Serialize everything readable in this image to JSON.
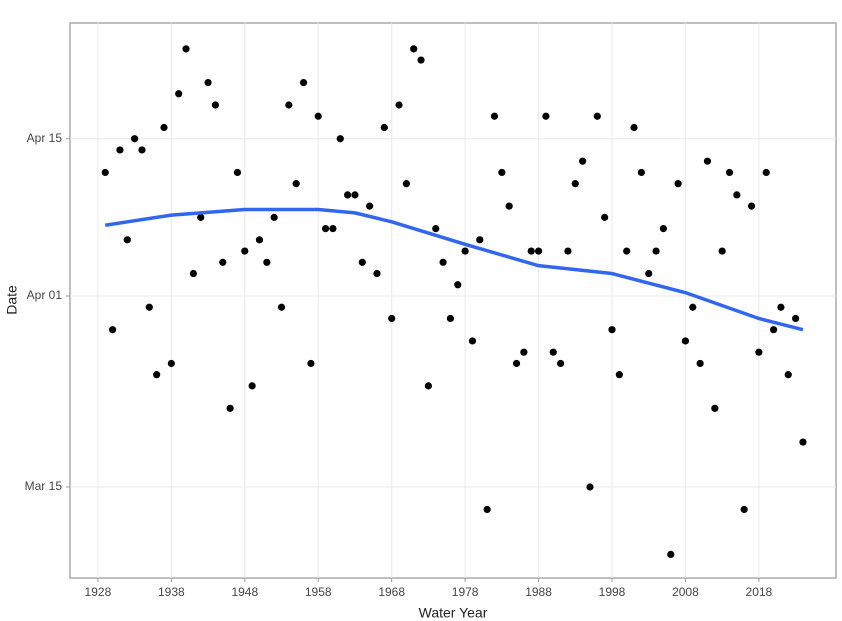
{
  "chart_data": {
    "type": "scatter",
    "x_label": "Water Year",
    "y_label": "Date",
    "xlim": [
      1924.2,
      2028.5
    ],
    "xticks": [
      1928,
      1938,
      1948,
      1958,
      1968,
      1978,
      1988,
      1998,
      2008,
      2018
    ],
    "ylim": [
      65.9,
      115.3
    ],
    "yticks": [
      {
        "value": 74,
        "label": "Mar 15"
      },
      {
        "value": 91,
        "label": "Apr 01"
      },
      {
        "value": 105,
        "label": "Apr 15"
      }
    ],
    "grid": true,
    "points": {
      "color": "#000000",
      "x": [
        1929,
        1930,
        1931,
        1932,
        1933,
        1934,
        1935,
        1936,
        1937,
        1938,
        1939,
        1940,
        1941,
        1942,
        1943,
        1944,
        1945,
        1946,
        1947,
        1948,
        1949,
        1950,
        1951,
        1952,
        1953,
        1954,
        1955,
        1956,
        1957,
        1958,
        1959,
        1960,
        1961,
        1962,
        1963,
        1964,
        1965,
        1966,
        1967,
        1968,
        1969,
        1970,
        1971,
        1972,
        1973,
        1974,
        1975,
        1976,
        1977,
        1978,
        1979,
        1980,
        1981,
        1982,
        1983,
        1984,
        1985,
        1986,
        1987,
        1988,
        1989,
        1990,
        1991,
        1992,
        1993,
        1994,
        1995,
        1996,
        1997,
        1998,
        1999,
        2000,
        2001,
        2002,
        2003,
        2004,
        2005,
        2006,
        2007,
        2008,
        2009,
        2010,
        2011,
        2012,
        2013,
        2014,
        2015,
        2016,
        2017,
        2018,
        2019,
        2020,
        2021,
        2022,
        2023,
        2024
      ],
      "values": [
        102,
        88,
        104,
        96,
        105,
        104,
        90,
        84,
        106,
        85,
        109,
        113,
        93,
        98,
        110,
        108,
        94,
        81,
        102,
        95,
        83,
        96,
        94,
        98,
        90,
        108,
        101,
        110,
        85,
        107,
        97,
        97,
        105,
        100,
        100,
        94,
        99,
        93,
        106,
        89,
        108,
        101,
        113,
        112,
        83,
        97,
        94,
        89,
        92,
        95,
        87,
        96,
        72,
        107,
        102,
        99,
        85,
        86,
        95,
        95,
        107,
        86,
        85,
        95,
        101,
        103,
        74,
        107,
        98,
        88,
        84,
        95,
        106,
        102,
        93,
        95,
        97,
        68,
        101,
        87,
        90,
        85,
        103,
        81,
        95,
        102,
        100,
        72,
        99,
        86,
        102,
        88,
        90,
        84,
        89,
        78
      ]
    },
    "trend": {
      "color": "#3366ee",
      "x": [
        1929,
        1938,
        1948,
        1958,
        1963,
        1968,
        1978,
        1988,
        1998,
        2008,
        2018,
        2024
      ],
      "values": [
        97.3,
        98.2,
        98.7,
        98.7,
        98.4,
        97.6,
        95.6,
        93.7,
        93.0,
        91.3,
        89.0,
        88.0
      ]
    }
  }
}
